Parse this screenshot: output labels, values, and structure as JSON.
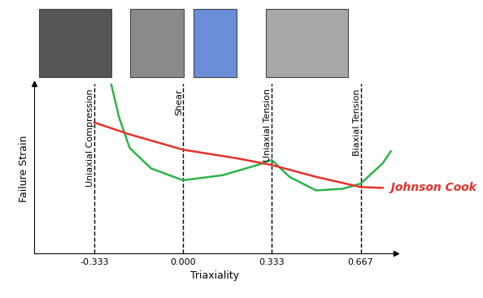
{
  "chart_data": {
    "type": "line",
    "x_label": "Triaxiality",
    "y_label": "Failure Strain",
    "xlim": [
      -0.56,
      0.8
    ],
    "ylim": [
      0,
      1
    ],
    "xticks": [
      -0.333,
      {
        "value": 0.0,
        "label": "0.000"
      },
      0.333,
      0.667
    ],
    "yticks": [],
    "tick_labels": "x",
    "reference_lines": [
      {
        "x": -0.333,
        "label": "Uniaxial Compression"
      },
      {
        "x": 0.0,
        "label": "Shear"
      },
      {
        "x": 0.333,
        "label": "Uniaxial Tension"
      },
      {
        "x": 0.667,
        "label": "Biaxial Tension"
      }
    ],
    "series": [
      {
        "color": "#2db34a",
        "x": [
          -0.27,
          -0.24,
          -0.2,
          -0.12,
          0.0,
          0.15,
          0.28,
          0.333,
          0.4,
          0.5,
          0.6,
          0.667,
          0.75,
          0.78
        ],
        "values": [
          1.0,
          0.8,
          0.62,
          0.5,
          0.43,
          0.46,
          0.52,
          0.55,
          0.45,
          0.37,
          0.38,
          0.41,
          0.53,
          0.6
        ]
      },
      {
        "name": "Johnson Cook",
        "color": "#e8302a",
        "x": [
          -0.333,
          -0.2,
          0.0,
          0.2,
          0.333,
          0.5,
          0.667,
          0.75
        ],
        "values": [
          0.77,
          0.7,
          0.61,
          0.56,
          0.52,
          0.45,
          0.39,
          0.385
        ]
      }
    ]
  }
}
